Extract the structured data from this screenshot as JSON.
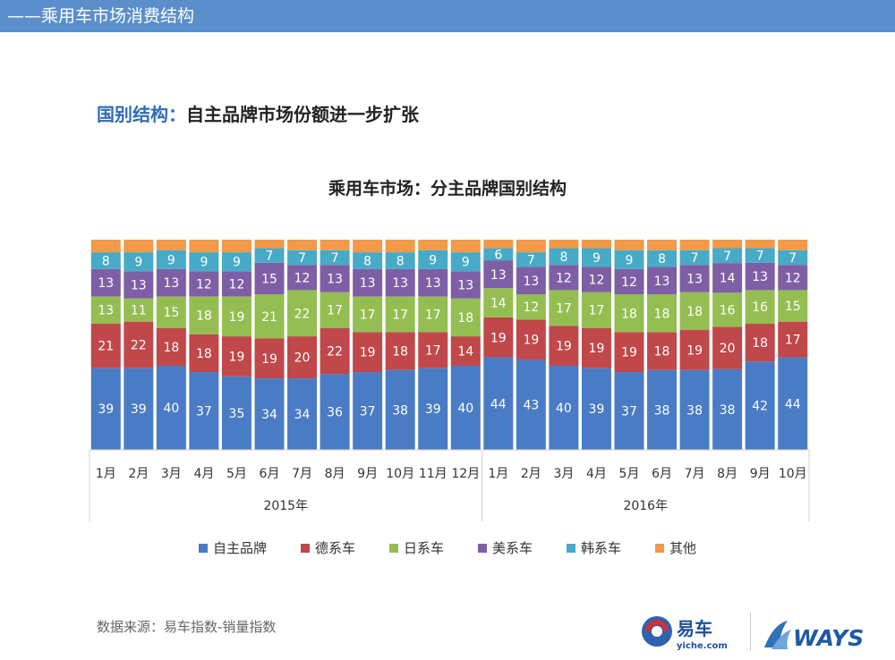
{
  "header": {
    "title": "——乘用车市场消费结构"
  },
  "heading": {
    "accent": "国别结构：",
    "text": "自主品牌市场份额进一步扩张"
  },
  "source": "数据来源：易车指数-销量指数",
  "logos": {
    "yiche_text": "易车",
    "yiche_sub": "yiche.com",
    "ways_text": "WAYS"
  },
  "colors": {
    "自主品牌": "#4a7bc5",
    "德系车": "#c0474a",
    "日系车": "#94be52",
    "美系车": "#7e5fa6",
    "韩系车": "#47aac6",
    "其他": "#f39a48"
  },
  "chart_data": {
    "type": "bar",
    "stacked": true,
    "title": "乘用车市场：分主品牌国别结构",
    "categories": [
      "1月",
      "2月",
      "3月",
      "4月",
      "5月",
      "6月",
      "7月",
      "8月",
      "9月",
      "10月",
      "11月",
      "12月",
      "1月",
      "2月",
      "3月",
      "4月",
      "5月",
      "6月",
      "7月",
      "8月",
      "9月",
      "10月"
    ],
    "groups": [
      {
        "label": "2015年",
        "count": 12
      },
      {
        "label": "2016年",
        "count": 10
      }
    ],
    "ylim": [
      0,
      100
    ],
    "series": [
      {
        "name": "自主品牌",
        "values": [
          39,
          39,
          40,
          37,
          35,
          34,
          34,
          36,
          37,
          38,
          39,
          40,
          44,
          43,
          40,
          39,
          37,
          38,
          38,
          38,
          42,
          44
        ]
      },
      {
        "name": "德系车",
        "values": [
          21,
          22,
          18,
          18,
          19,
          19,
          20,
          22,
          19,
          18,
          17,
          14,
          19,
          19,
          19,
          19,
          19,
          18,
          19,
          20,
          18,
          17
        ]
      },
      {
        "name": "日系车",
        "values": [
          13,
          11,
          15,
          18,
          19,
          21,
          22,
          17,
          17,
          17,
          17,
          18,
          14,
          12,
          17,
          17,
          18,
          18,
          18,
          16,
          16,
          15
        ]
      },
      {
        "name": "美系车",
        "values": [
          13,
          13,
          13,
          12,
          12,
          15,
          12,
          13,
          13,
          13,
          13,
          13,
          13,
          13,
          12,
          12,
          12,
          13,
          13,
          14,
          13,
          12
        ]
      },
      {
        "name": "韩系车",
        "values": [
          8,
          9,
          9,
          9,
          9,
          7,
          7,
          7,
          8,
          8,
          9,
          9,
          6,
          7,
          8,
          9,
          9,
          8,
          7,
          7,
          7,
          7
        ]
      },
      {
        "name": "其他",
        "values": [
          6,
          6,
          5,
          6,
          6,
          4,
          5,
          5,
          6,
          6,
          5,
          6,
          4,
          6,
          4,
          4,
          5,
          5,
          5,
          4,
          4,
          5
        ],
        "show_labels": false
      }
    ],
    "legend_position": "bottom",
    "grid": false
  }
}
